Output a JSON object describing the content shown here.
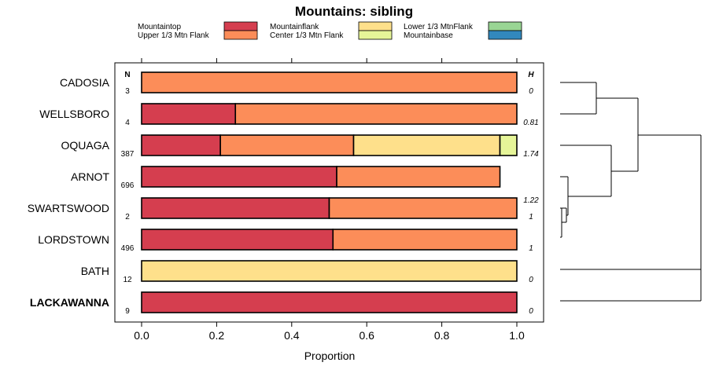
{
  "chart_data": {
    "type": "bar",
    "orientation": "horizontal",
    "stacked": true,
    "title": "Mountains: sibling",
    "xlabel": "Proportion",
    "ylabel": "",
    "xlim": [
      0,
      1
    ],
    "xticks": [
      "0.0",
      "0.2",
      "0.4",
      "0.6",
      "0.8",
      "1.0"
    ],
    "n_header": "N",
    "h_header": "H",
    "legend": [
      {
        "name": "Mountaintop",
        "color": "#d53e4f"
      },
      {
        "name": "Upper 1/3 Mtn Flank",
        "color": "#fc8d59"
      },
      {
        "name": "Mountainflank",
        "color": "#fee08b"
      },
      {
        "name": "Center 1/3 Mtn Flank",
        "color": "#e6f598"
      },
      {
        "name": "Lower 1/3 MtnFlank",
        "color": "#99d594"
      },
      {
        "name": "Mountainbase",
        "color": "#3288bd"
      }
    ],
    "categories": [
      "CADOSIA",
      "WELLSBORO",
      "OQUAGA",
      "ARNOT",
      "SWARTSWOOD",
      "LORDSTOWN",
      "BATH",
      "LACKAWANNA"
    ],
    "bold_category": "LACKAWANNA",
    "n": [
      "3",
      "4",
      "387",
      "696",
      "2",
      "496",
      "12",
      "9"
    ],
    "h": [
      "0",
      "0.81",
      "1.74",
      "1.22",
      "1",
      "1",
      "0",
      "0"
    ],
    "series": [
      {
        "name": "Mountaintop",
        "values": [
          0,
          0.25,
          0.21,
          0.52,
          0.5,
          0.51,
          0,
          1.0
        ]
      },
      {
        "name": "Upper 1/3 Mtn Flank",
        "values": [
          1.0,
          0.75,
          0.355,
          0.435,
          0.5,
          0.49,
          0,
          0
        ]
      },
      {
        "name": "Mountainflank",
        "values": [
          0,
          0,
          0.39,
          0,
          0,
          0,
          1.0,
          0
        ]
      },
      {
        "name": "Center 1/3 Mtn Flank",
        "values": [
          0,
          0,
          0.045,
          0,
          0,
          0,
          0,
          0
        ]
      },
      {
        "name": "Lower 1/3 MtnFlank",
        "values": [
          0,
          0,
          0,
          0,
          0,
          0,
          0,
          0
        ]
      },
      {
        "name": "Mountainbase",
        "values": [
          0,
          0,
          0,
          0,
          0,
          0,
          0,
          0
        ]
      }
    ],
    "dendrogram": "hierarchical clustering of sites shown at right"
  }
}
